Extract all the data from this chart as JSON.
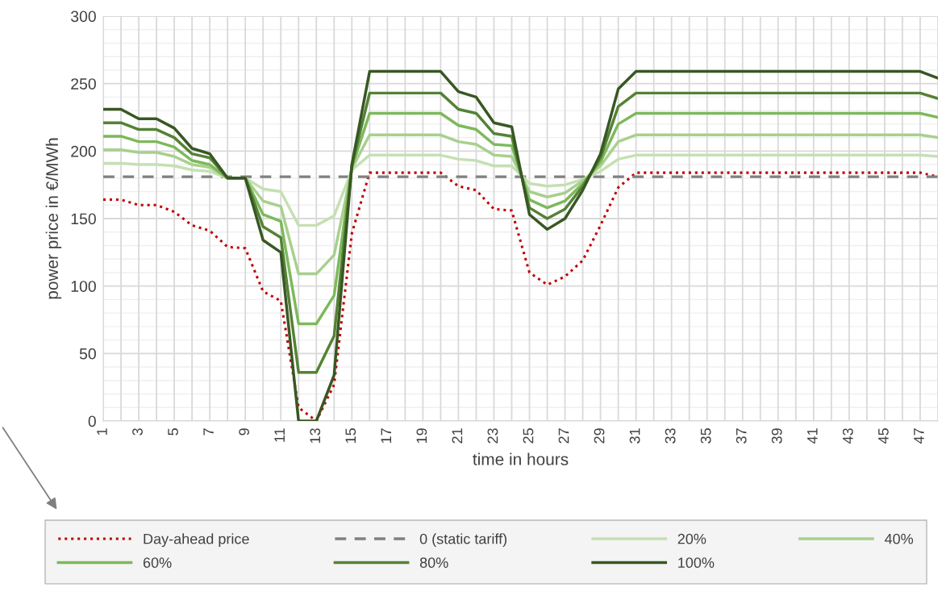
{
  "chart_data": {
    "type": "line",
    "xlabel": "time in hours",
    "ylabel": "power price in €/MWh",
    "categories": [
      "1",
      null,
      "3",
      null,
      "5",
      null,
      "7",
      null,
      "9",
      null,
      "11",
      null,
      "13",
      null,
      "15",
      null,
      "17",
      null,
      "19",
      null,
      "21",
      null,
      "23",
      null,
      "25",
      null,
      "27",
      null,
      "29",
      null,
      "31",
      null,
      "33",
      null,
      "35",
      null,
      "37",
      null,
      "39",
      null,
      "41",
      null,
      "43",
      null,
      "45",
      null,
      "47",
      null
    ],
    "ylim": [
      0,
      300
    ],
    "yticks": [
      0,
      50,
      100,
      150,
      200,
      250,
      300
    ],
    "grid": true,
    "legend": "bottom",
    "marker": "none",
    "series": [
      {
        "name": "Day-ahead price",
        "color": "#c00000",
        "line_style": "dotted",
        "values": [
          164,
          164,
          160,
          160,
          155,
          145,
          141,
          129,
          128,
          96,
          89,
          10,
          0,
          27,
          139,
          184,
          184,
          184,
          184,
          184,
          174,
          171,
          157,
          156,
          110,
          101,
          107,
          119,
          145,
          173,
          184,
          184,
          184,
          184,
          184,
          184,
          184,
          184,
          184,
          184,
          184,
          184,
          184,
          184,
          184,
          184,
          184,
          181
        ]
      },
      {
        "name": "0 (static tariff)",
        "color": "#808080",
        "line_style": "dashed",
        "values": [
          181,
          181,
          181,
          181,
          181,
          181,
          181,
          181,
          181,
          181,
          181,
          181,
          181,
          181,
          181,
          181,
          181,
          181,
          181,
          181,
          181,
          181,
          181,
          181,
          181,
          181,
          181,
          181,
          181,
          181,
          181,
          181,
          181,
          181,
          181,
          181,
          181,
          181,
          181,
          181,
          181,
          181,
          181,
          181,
          181,
          181,
          181,
          181
        ]
      },
      {
        "name": "20%",
        "color": "#c5e0b3",
        "line_style": "solid",
        "values": [
          191,
          191,
          190,
          190,
          189,
          186,
          185,
          180,
          180,
          172,
          170,
          145,
          145,
          152,
          186,
          197,
          197,
          197,
          197,
          197,
          194,
          193,
          189,
          189,
          176,
          174,
          175,
          179,
          185,
          194,
          197,
          197,
          197,
          197,
          197,
          197,
          197,
          197,
          197,
          197,
          197,
          197,
          197,
          197,
          197,
          197,
          197,
          196
        ]
      },
      {
        "name": "40%",
        "color": "#a8d08d",
        "line_style": "solid",
        "values": [
          201,
          201,
          199,
          199,
          196,
          190,
          188,
          180,
          180,
          163,
          159,
          109,
          109,
          123,
          187,
          212,
          212,
          212,
          212,
          212,
          207,
          205,
          197,
          196,
          170,
          166,
          169,
          178,
          189,
          207,
          212,
          212,
          212,
          212,
          212,
          212,
          212,
          212,
          212,
          212,
          212,
          212,
          212,
          212,
          212,
          212,
          212,
          210
        ]
      },
      {
        "name": "60%",
        "color": "#7cb95b",
        "line_style": "solid",
        "values": [
          211,
          211,
          207,
          207,
          203,
          193,
          190,
          180,
          180,
          153,
          148,
          72,
          72,
          93,
          188,
          228,
          228,
          228,
          228,
          228,
          219,
          216,
          205,
          204,
          164,
          158,
          163,
          176,
          192,
          220,
          228,
          228,
          228,
          228,
          228,
          228,
          228,
          228,
          228,
          228,
          228,
          228,
          228,
          228,
          228,
          228,
          228,
          225
        ]
      },
      {
        "name": "80%",
        "color": "#548235",
        "line_style": "solid",
        "values": [
          221,
          221,
          216,
          216,
          210,
          198,
          195,
          180,
          180,
          144,
          136,
          36,
          36,
          63,
          189,
          243,
          243,
          243,
          243,
          243,
          231,
          228,
          213,
          211,
          158,
          150,
          157,
          174,
          195,
          233,
          243,
          243,
          243,
          243,
          243,
          243,
          243,
          243,
          243,
          243,
          243,
          243,
          243,
          243,
          243,
          243,
          243,
          239
        ]
      },
      {
        "name": "100%",
        "color": "#385723",
        "line_style": "solid",
        "values": [
          231,
          231,
          224,
          224,
          217,
          202,
          198,
          180,
          180,
          134,
          125,
          0,
          0,
          34,
          190,
          259,
          259,
          259,
          259,
          259,
          244,
          240,
          221,
          218,
          153,
          142,
          150,
          171,
          198,
          246,
          259,
          259,
          259,
          259,
          259,
          259,
          259,
          259,
          259,
          259,
          259,
          259,
          259,
          259,
          259,
          259,
          259,
          254
        ]
      }
    ]
  }
}
